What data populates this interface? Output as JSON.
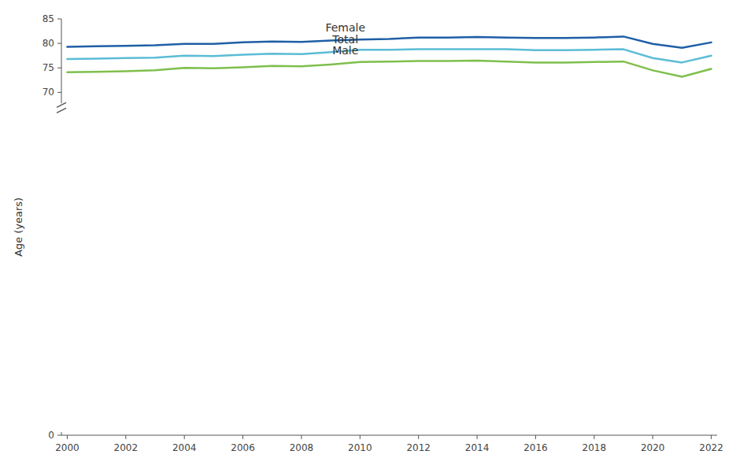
{
  "chart_data": {
    "type": "line",
    "y_label": "Age (years)",
    "x": [
      2000,
      2001,
      2002,
      2003,
      2004,
      2005,
      2006,
      2007,
      2008,
      2009,
      2010,
      2011,
      2012,
      2013,
      2014,
      2015,
      2016,
      2017,
      2018,
      2019,
      2020,
      2021,
      2022
    ],
    "series": [
      {
        "color": "#1f5fa6",
        "values": [
          79.3,
          79.4,
          79.5,
          79.6,
          79.9,
          79.9,
          80.2,
          80.4,
          80.3,
          80.6,
          80.8,
          80.9,
          81.2,
          81.2,
          81.3,
          81.2,
          81.1,
          81.1,
          81.2,
          81.4,
          79.9,
          79.1,
          80.2
        ]
      },
      {
        "color": "#5bbcd6",
        "values": [
          76.8,
          76.9,
          77.0,
          77.1,
          77.5,
          77.4,
          77.7,
          77.9,
          77.8,
          78.2,
          78.7,
          78.7,
          78.8,
          78.8,
          78.8,
          78.8,
          78.6,
          78.6,
          78.7,
          78.8,
          77.0,
          76.1,
          77.5
        ]
      },
      {
        "color": "#7fbf4d",
        "values": [
          74.1,
          74.2,
          74.3,
          74.5,
          75.0,
          74.9,
          75.1,
          75.4,
          75.3,
          75.7,
          76.2,
          76.3,
          76.4,
          76.4,
          76.5,
          76.3,
          76.1,
          76.1,
          76.2,
          76.3,
          74.5,
          73.2,
          74.8
        ]
      }
    ],
    "annotations": [
      {
        "text": "Female",
        "x": 2009.5,
        "y": 82.0
      },
      {
        "text": "Total",
        "x": 2009.5,
        "y": 79.5
      },
      {
        "text": "Male",
        "x": 2009.5,
        "y": 77.3
      }
    ],
    "xlim": [
      1999.8,
      2022.2
    ],
    "xticks": [
      2000,
      2002,
      2004,
      2006,
      2008,
      2010,
      2012,
      2014,
      2016,
      2018,
      2020,
      2022
    ],
    "ylim": [
      0,
      85
    ],
    "yticks": [
      0,
      70,
      75,
      80,
      85
    ],
    "grid": false
  }
}
